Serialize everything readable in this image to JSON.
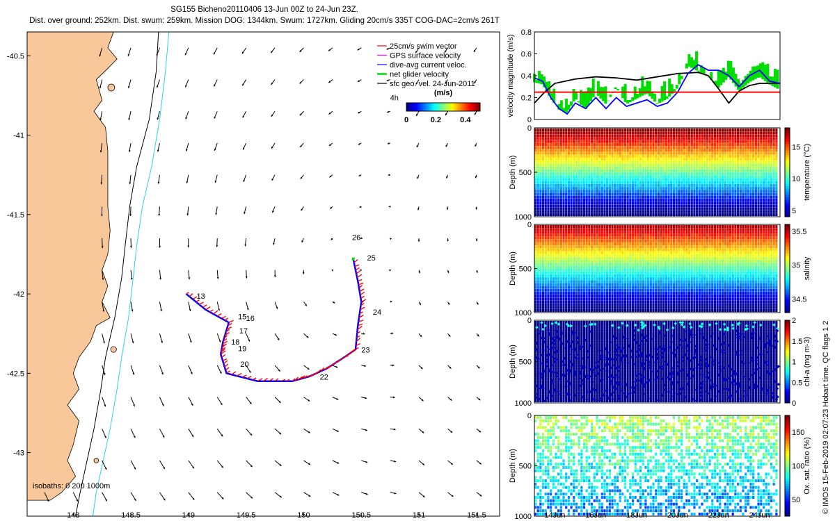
{
  "title": {
    "line1": "SG155 Bicheno20110406 13-Jun 00Z to 24-Jun 23Z.",
    "line2": "Dist. over ground: 252km. Dist. swum: 259km. Mission DOG: 1344km. Swum: 1727km. Gliding 20cm/s 335T COG-DAC=2cm/s 261T"
  },
  "credit": "© IMOS 15-Feb-2019 02:07:23 Hobart time. QC flags 1 2",
  "colors": {
    "land": "#f8c89a",
    "isobath_200": "#000000",
    "isobath_1000": "#29d3e6",
    "swim_vector": "#ff0000",
    "gps_velocity": "#ff00ff",
    "dac": "#0000ff",
    "net_velocity": "#00dd00",
    "sfc_geo": "#000000"
  },
  "chart_data": [
    {
      "type": "map",
      "xlim": [
        147.6,
        151.7
      ],
      "ylim": [
        -43.4,
        -40.35
      ],
      "xticks": [
        "148",
        "148.5",
        "149",
        "149.5",
        "150",
        "150.5",
        "151",
        "151.5"
      ],
      "yticks": [
        "-40.5",
        "-41",
        "-41.5",
        "-42",
        "-42.5",
        "-43"
      ],
      "legend": {
        "placement": "top-right",
        "entries": [
          "25cm/s swim vector",
          "GPS surface velocity",
          "dive-avg current veloc.",
          "net glider velocity",
          "sfc geo. vel. 24-Jun-2011"
        ],
        "colorbar_label": "(m/s)",
        "colorbar_ticks": [
          "0",
          "0.2",
          "0.4"
        ],
        "colorbar_range": [
          0,
          0.5
        ]
      },
      "isobath_label": "isobaths: 0   200  1000m",
      "day_labels": [
        {
          "text": "13",
          "lon": 149.07,
          "lat": -42.03
        },
        {
          "text": "15",
          "lon": 149.43,
          "lat": -42.16
        },
        {
          "text": "16",
          "lon": 149.5,
          "lat": -42.17
        },
        {
          "text": "17",
          "lon": 149.44,
          "lat": -42.25
        },
        {
          "text": "18",
          "lon": 149.37,
          "lat": -42.32
        },
        {
          "text": "19",
          "lon": 149.43,
          "lat": -42.36
        },
        {
          "text": "20",
          "lon": 149.45,
          "lat": -42.46
        },
        {
          "text": "22",
          "lon": 150.14,
          "lat": -42.54
        },
        {
          "text": "23",
          "lon": 150.5,
          "lat": -42.37
        },
        {
          "text": "24",
          "lon": 150.6,
          "lat": -42.13
        },
        {
          "text": "25",
          "lon": 150.55,
          "lat": -41.79
        },
        {
          "text": "26",
          "lon": 150.42,
          "lat": -41.66
        },
        {
          "text": "4h",
          "lon": 150.75,
          "lat": -40.78
        }
      ],
      "track": [
        [
          148.98,
          -42.0
        ],
        [
          149.15,
          -42.1
        ],
        [
          149.35,
          -42.18
        ],
        [
          149.3,
          -42.3
        ],
        [
          149.28,
          -42.38
        ],
        [
          149.33,
          -42.5
        ],
        [
          149.6,
          -42.55
        ],
        [
          149.9,
          -42.55
        ],
        [
          150.05,
          -42.52
        ],
        [
          150.2,
          -42.47
        ],
        [
          150.35,
          -42.4
        ],
        [
          150.45,
          -42.35
        ],
        [
          150.47,
          -42.2
        ],
        [
          150.5,
          -42.05
        ],
        [
          150.47,
          -41.92
        ],
        [
          150.43,
          -41.78
        ]
      ],
      "isobath_200": [
        [
          148.74,
          -40.35
        ],
        [
          148.72,
          -40.6
        ],
        [
          148.66,
          -40.9
        ],
        [
          148.55,
          -41.2
        ],
        [
          148.49,
          -41.45
        ],
        [
          148.45,
          -41.7
        ],
        [
          148.42,
          -41.9
        ],
        [
          148.36,
          -42.15
        ],
        [
          148.28,
          -42.4
        ],
        [
          148.24,
          -42.6
        ],
        [
          148.18,
          -42.85
        ],
        [
          148.12,
          -43.05
        ],
        [
          148.06,
          -43.25
        ],
        [
          148.02,
          -43.4
        ]
      ],
      "isobath_1000": [
        [
          148.83,
          -40.35
        ],
        [
          148.8,
          -40.6
        ],
        [
          148.75,
          -40.9
        ],
        [
          148.68,
          -41.2
        ],
        [
          148.6,
          -41.45
        ],
        [
          148.55,
          -41.7
        ],
        [
          148.52,
          -41.9
        ],
        [
          148.48,
          -42.15
        ],
        [
          148.42,
          -42.4
        ],
        [
          148.38,
          -42.6
        ],
        [
          148.32,
          -42.85
        ],
        [
          148.26,
          -43.05
        ],
        [
          148.2,
          -43.25
        ],
        [
          148.17,
          -43.4
        ]
      ]
    },
    {
      "type": "line",
      "ylabel": "velocity magnitude (m/s)",
      "ylim": [
        0,
        0.8
      ],
      "yticks": [
        "0",
        "0.2",
        "0.4",
        "0.6",
        "0.8"
      ],
      "xlim": [
        13,
        25
      ],
      "series": [
        {
          "color": "black",
          "x": [
            13,
            13.5,
            14,
            15,
            16,
            17,
            18,
            19,
            20,
            21,
            21.5,
            22,
            22.5,
            23,
            23.5,
            24,
            25
          ],
          "y": [
            0.15,
            0.25,
            0.33,
            0.37,
            0.39,
            0.38,
            0.36,
            0.39,
            0.42,
            0.43,
            0.4,
            0.28,
            0.15,
            0.26,
            0.31,
            0.33,
            0.33
          ]
        },
        {
          "color": "blue",
          "x": [
            13,
            13.4,
            13.8,
            14.2,
            14.6,
            15,
            15.5,
            16,
            16.5,
            17,
            17.5,
            18,
            18.5,
            19,
            19.5,
            20,
            20.5,
            21,
            21.5,
            22,
            22.5,
            23,
            23.5,
            24,
            24.5,
            25
          ],
          "y": [
            0.38,
            0.35,
            0.2,
            0.1,
            0.05,
            0.15,
            0.1,
            0.2,
            0.1,
            0.2,
            0.12,
            0.15,
            0.18,
            0.12,
            0.15,
            0.25,
            0.42,
            0.5,
            0.45,
            0.45,
            0.4,
            0.3,
            0.4,
            0.45,
            0.35,
            0.33
          ]
        },
        {
          "color": "green",
          "x": [
            13,
            13.4,
            13.8,
            14.2,
            14.6,
            15,
            15.5,
            16,
            16.5,
            17,
            17.5,
            18,
            18.5,
            19,
            19.5,
            20,
            20.5,
            21,
            21.5,
            22,
            22.5,
            23,
            23.5,
            24,
            24.5,
            25
          ],
          "y": [
            0.4,
            0.38,
            0.25,
            0.15,
            0.12,
            0.25,
            0.15,
            0.3,
            0.2,
            0.35,
            0.2,
            0.25,
            0.3,
            0.2,
            0.25,
            0.35,
            0.55,
            0.5,
            0.45,
            0.35,
            0.45,
            0.32,
            0.4,
            0.45,
            0.38,
            0.33
          ]
        },
        {
          "color": "red",
          "x": [
            13,
            25
          ],
          "y": [
            0.25,
            0.25
          ]
        }
      ]
    },
    {
      "type": "heatmap",
      "label": "temperature (°C)",
      "colorbar_ticks": [
        "5",
        "10",
        "15"
      ],
      "clim": [
        4,
        18
      ],
      "yticks": [
        "0",
        "500",
        "1000"
      ],
      "ylabel": "Depth (m)",
      "ylim": [
        1000,
        0
      ],
      "xlim": [
        13,
        25
      ]
    },
    {
      "type": "heatmap",
      "label": "salinity",
      "colorbar_ticks": [
        "34.5",
        "35",
        "35.5"
      ],
      "clim": [
        34.3,
        35.6
      ],
      "yticks": [
        "0",
        "500",
        "1000"
      ],
      "ylabel": "Depth (m)",
      "ylim": [
        1000,
        0
      ],
      "xlim": [
        13,
        25
      ]
    },
    {
      "type": "scatter",
      "label": "chl-a (mg m-3)",
      "colorbar_ticks": [
        "0",
        "0.5",
        "1",
        "1.5",
        "2"
      ],
      "clim": [
        0,
        2
      ],
      "yticks": [
        "0",
        "500",
        "1000"
      ],
      "ylabel": "Depth (m)",
      "ylim": [
        1000,
        0
      ],
      "xlim": [
        13,
        25
      ]
    },
    {
      "type": "heatmap",
      "label": "Ox. sat. ratio (%)",
      "colorbar_ticks": [
        "50",
        "100",
        "150"
      ],
      "clim": [
        25,
        175
      ],
      "yticks": [
        "0",
        "500",
        "1000"
      ],
      "ylabel": "Depth (m)",
      "ylim": [
        1000,
        0
      ],
      "xlim": [
        13,
        25
      ],
      "xticks": [
        "14Jun",
        "16Jun",
        "18Jun",
        "20Jun",
        "22Jun",
        "24Jun"
      ],
      "xtick_values": [
        14,
        16,
        18,
        20,
        22,
        24
      ]
    }
  ]
}
